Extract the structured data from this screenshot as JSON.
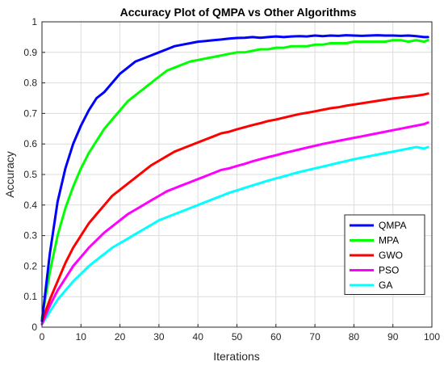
{
  "chart_data": {
    "type": "line",
    "title": "Accuracy Plot of QMPA vs Other Algorithms",
    "xlabel": "Iterations",
    "ylabel": "Accuracy",
    "xlim": [
      0,
      100
    ],
    "ylim": [
      0,
      1
    ],
    "xticks": [
      "0",
      "10",
      "20",
      "30",
      "40",
      "50",
      "60",
      "70",
      "80",
      "90",
      "100"
    ],
    "yticks": [
      "0",
      "0.1",
      "0.2",
      "0.3",
      "0.4",
      "0.5",
      "0.6",
      "0.7",
      "0.8",
      "0.9",
      "1"
    ],
    "grid": true,
    "legend_position": "bottom-right",
    "x": [
      0,
      2,
      4,
      6,
      8,
      10,
      12,
      14,
      16,
      18,
      20,
      22,
      24,
      26,
      28,
      30,
      32,
      34,
      36,
      38,
      40,
      42,
      44,
      46,
      48,
      50,
      52,
      54,
      56,
      58,
      60,
      62,
      64,
      66,
      68,
      70,
      72,
      74,
      76,
      78,
      80,
      82,
      84,
      86,
      88,
      90,
      92,
      94,
      96,
      98,
      99
    ],
    "series": [
      {
        "name": "QMPA",
        "color": "#0000ff",
        "values": [
          0.02,
          0.24,
          0.41,
          0.52,
          0.6,
          0.66,
          0.71,
          0.75,
          0.77,
          0.8,
          0.83,
          0.85,
          0.87,
          0.88,
          0.89,
          0.9,
          0.91,
          0.92,
          0.925,
          0.93,
          0.935,
          0.937,
          0.94,
          0.942,
          0.945,
          0.947,
          0.948,
          0.95,
          0.948,
          0.95,
          0.952,
          0.95,
          0.952,
          0.953,
          0.952,
          0.955,
          0.953,
          0.955,
          0.954,
          0.956,
          0.955,
          0.954,
          0.955,
          0.956,
          0.955,
          0.955,
          0.954,
          0.955,
          0.953,
          0.95,
          0.95
        ]
      },
      {
        "name": "MPA",
        "color": "#00ff00",
        "values": [
          0.03,
          0.18,
          0.3,
          0.39,
          0.46,
          0.52,
          0.57,
          0.61,
          0.65,
          0.68,
          0.71,
          0.74,
          0.76,
          0.78,
          0.8,
          0.82,
          0.84,
          0.85,
          0.86,
          0.87,
          0.875,
          0.88,
          0.885,
          0.89,
          0.895,
          0.9,
          0.9,
          0.905,
          0.91,
          0.91,
          0.915,
          0.915,
          0.92,
          0.92,
          0.92,
          0.925,
          0.925,
          0.93,
          0.93,
          0.93,
          0.935,
          0.935,
          0.935,
          0.935,
          0.935,
          0.94,
          0.94,
          0.935,
          0.94,
          0.935,
          0.94
        ]
      },
      {
        "name": "GWO",
        "color": "#ff0000",
        "values": [
          0.02,
          0.09,
          0.15,
          0.21,
          0.26,
          0.3,
          0.34,
          0.37,
          0.4,
          0.43,
          0.45,
          0.47,
          0.49,
          0.51,
          0.53,
          0.545,
          0.56,
          0.575,
          0.585,
          0.595,
          0.605,
          0.615,
          0.625,
          0.635,
          0.64,
          0.648,
          0.655,
          0.662,
          0.668,
          0.675,
          0.68,
          0.686,
          0.692,
          0.698,
          0.702,
          0.707,
          0.712,
          0.717,
          0.72,
          0.725,
          0.729,
          0.733,
          0.737,
          0.741,
          0.745,
          0.749,
          0.752,
          0.755,
          0.758,
          0.762,
          0.765
        ]
      },
      {
        "name": "PSO",
        "color": "#ff00ff",
        "values": [
          0.01,
          0.07,
          0.12,
          0.16,
          0.2,
          0.23,
          0.26,
          0.285,
          0.31,
          0.33,
          0.35,
          0.37,
          0.385,
          0.4,
          0.415,
          0.43,
          0.445,
          0.455,
          0.465,
          0.475,
          0.485,
          0.495,
          0.505,
          0.515,
          0.52,
          0.528,
          0.535,
          0.543,
          0.55,
          0.557,
          0.563,
          0.57,
          0.576,
          0.582,
          0.588,
          0.594,
          0.6,
          0.605,
          0.61,
          0.615,
          0.62,
          0.625,
          0.63,
          0.635,
          0.64,
          0.645,
          0.65,
          0.655,
          0.66,
          0.665,
          0.67
        ]
      },
      {
        "name": "GA",
        "color": "#00ffff",
        "values": [
          0.01,
          0.05,
          0.09,
          0.12,
          0.15,
          0.175,
          0.2,
          0.22,
          0.24,
          0.26,
          0.275,
          0.29,
          0.305,
          0.32,
          0.335,
          0.35,
          0.36,
          0.37,
          0.38,
          0.39,
          0.4,
          0.41,
          0.42,
          0.43,
          0.44,
          0.448,
          0.456,
          0.464,
          0.472,
          0.48,
          0.487,
          0.494,
          0.501,
          0.508,
          0.514,
          0.52,
          0.526,
          0.532,
          0.538,
          0.544,
          0.55,
          0.555,
          0.56,
          0.565,
          0.57,
          0.575,
          0.58,
          0.585,
          0.59,
          0.585,
          0.59
        ]
      }
    ]
  }
}
